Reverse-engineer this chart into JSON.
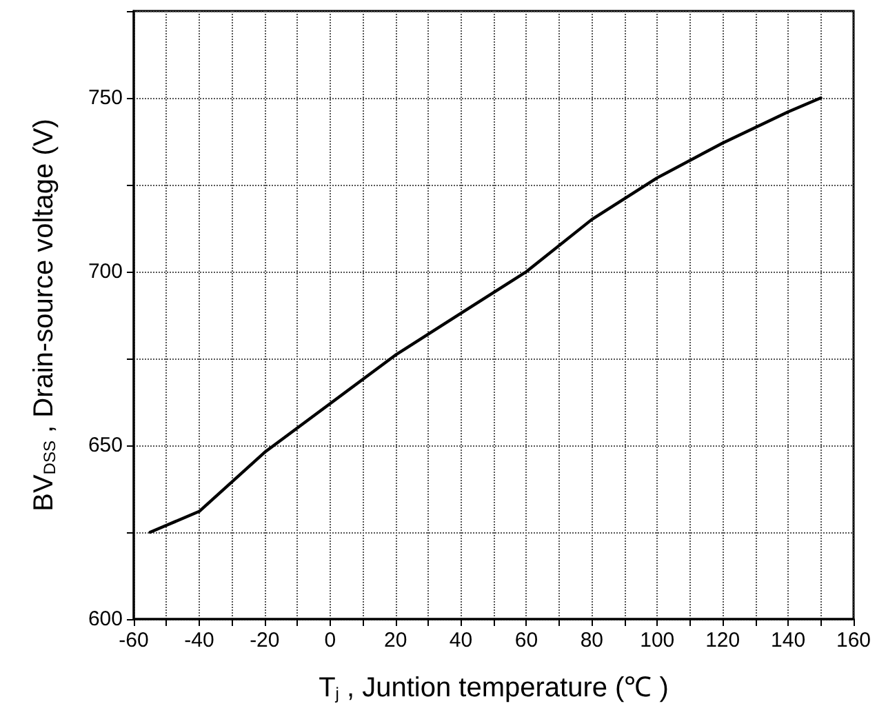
{
  "chart_data": {
    "type": "line",
    "xlabel": "T$_{j}$ , Juntion temperature (℃ )",
    "ylabel": "BV$_{DSS}$ , Drain-source voltage (V)",
    "series": [
      {
        "color": "#000000",
        "x": [
          -55,
          -40,
          -20,
          0,
          20,
          40,
          55,
          60,
          80,
          100,
          120,
          140,
          150
        ],
        "values": [
          625,
          631,
          648,
          662,
          676,
          688,
          697,
          700,
          715,
          727,
          737,
          746,
          750
        ]
      }
    ],
    "xlim": [
      -60,
      160
    ],
    "xticks": [
      -60,
      {
        "value": -50,
        "label": null
      },
      -40,
      {
        "value": -30,
        "label": null
      },
      -20,
      {
        "value": -10,
        "label": null
      },
      0,
      {
        "value": 10,
        "label": null
      },
      20,
      {
        "value": 30,
        "label": null
      },
      40,
      {
        "value": 50,
        "label": null
      },
      60,
      {
        "value": 70,
        "label": null
      },
      80,
      {
        "value": 90,
        "label": null
      },
      100,
      {
        "value": 110,
        "label": null
      },
      120,
      {
        "value": 130,
        "label": null
      },
      140,
      {
        "value": 150,
        "label": null
      },
      160
    ],
    "ylim": [
      600,
      775
    ],
    "yticks": [
      600,
      {
        "value": 625,
        "label": null
      },
      650,
      {
        "value": 675,
        "label": null
      },
      700,
      {
        "value": 725,
        "label": null
      },
      750,
      {
        "value": 775,
        "label": null
      }
    ],
    "grid": true,
    "line_style": "solid",
    "marker": "none"
  }
}
